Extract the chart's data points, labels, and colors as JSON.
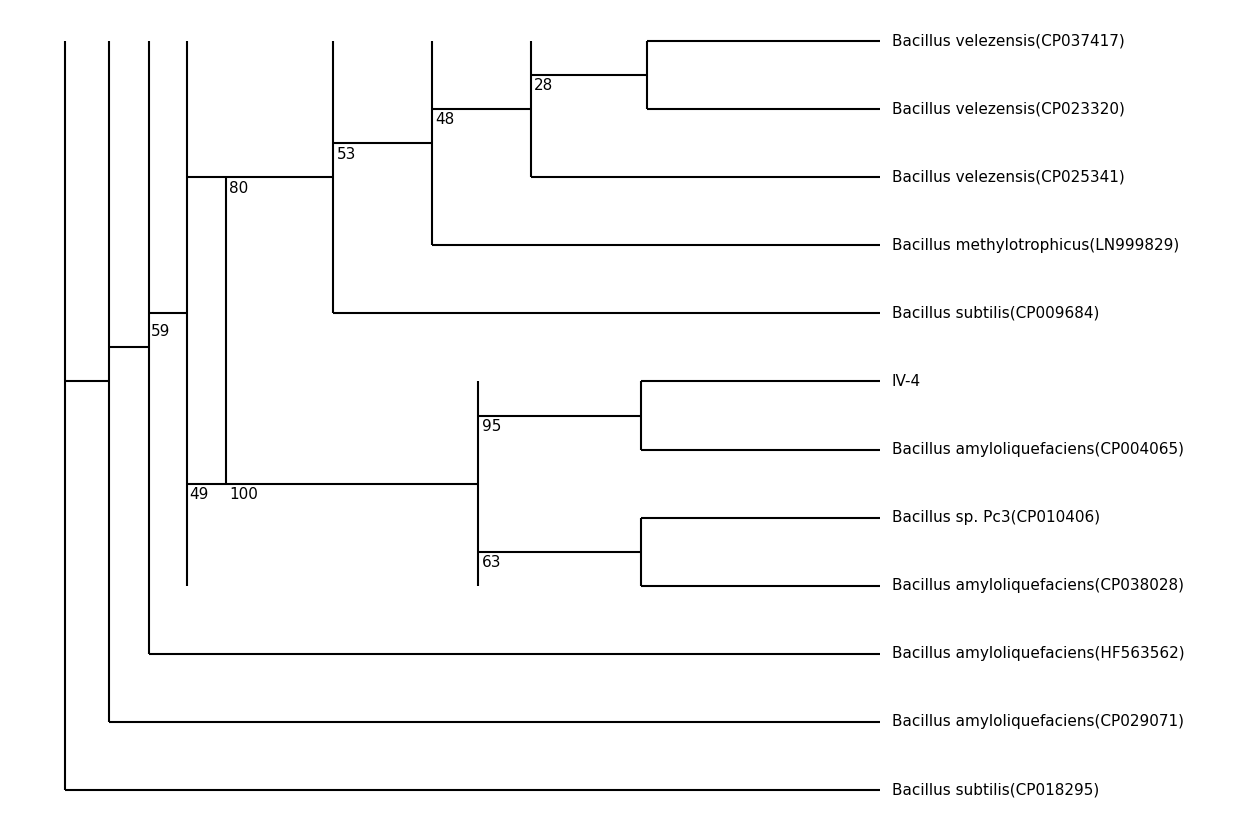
{
  "taxa": [
    "Bacillus velezensis(CP037417)",
    "Bacillus velezensis(CP023320)",
    "Bacillus velezensis(CP025341)",
    "Bacillus methylotrophicus(LN999829)",
    "Bacillus subtilis(CP009684)",
    "IV-4",
    "Bacillus amyloliquefaciens(CP004065)",
    "Bacillus sp. Pc3(CP010406)",
    "Bacillus amyloliquefaciens(CP038028)",
    "Bacillus amyloliquefaciens(HF563562)",
    "Bacillus amyloliquefaciens(CP029071)",
    "Bacillus subtilis(CP018295)"
  ],
  "background_color": "#ffffff",
  "line_color": "#000000",
  "font_size": 11,
  "label_font_size": 11
}
